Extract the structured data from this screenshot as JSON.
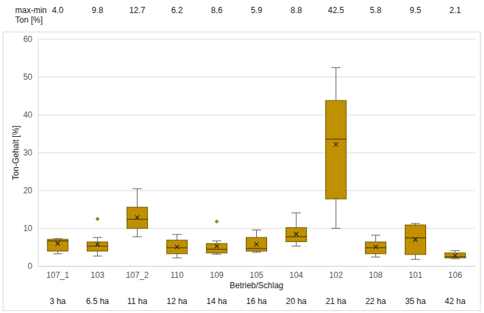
{
  "chart_data": {
    "type": "box",
    "x_label": "Betrieb/Schlag",
    "y_label": "Ton-Gehalt [%]",
    "categories": [
      "107_1",
      "103",
      "107_2",
      "110",
      "109",
      "105",
      "104",
      "102",
      "108",
      "101",
      "106"
    ],
    "min": [
      3.3,
      2.7,
      7.8,
      2.2,
      3.2,
      3.7,
      5.3,
      10.0,
      2.4,
      1.8,
      2.0
    ],
    "q1": [
      4.0,
      4.0,
      10.0,
      3.3,
      3.5,
      4.0,
      6.5,
      17.8,
      3.3,
      3.1,
      2.2
    ],
    "median": [
      6.7,
      5.3,
      12.4,
      4.9,
      4.5,
      4.7,
      7.8,
      33.6,
      4.9,
      7.5,
      2.5
    ],
    "q3": [
      7.1,
      6.4,
      15.6,
      6.9,
      6.0,
      7.6,
      10.2,
      43.8,
      6.4,
      10.9,
      3.5
    ],
    "max": [
      7.3,
      7.6,
      20.5,
      8.4,
      6.7,
      9.6,
      14.1,
      52.5,
      8.2,
      11.3,
      4.1
    ],
    "mean": [
      6.0,
      5.8,
      12.9,
      5.1,
      5.3,
      5.8,
      8.5,
      32.2,
      5.1,
      7.0,
      2.8
    ],
    "outliers": [
      [],
      [
        12.5
      ],
      [],
      [],
      [
        11.8
      ],
      [],
      [],
      [],
      [],
      [],
      []
    ],
    "color": "#bf9000",
    "ylim": [
      0,
      60
    ],
    "yticks": [
      0,
      10,
      20,
      30,
      40,
      50,
      60
    ],
    "grid": true,
    "range_row": {
      "title": [
        "max-min",
        "Ton [%]"
      ],
      "labels": [
        "4.0",
        "9.8",
        "12.7",
        "6.2",
        "8.6",
        "5.9",
        "8.8",
        "42.5",
        "5.8",
        "9.5",
        "2.1"
      ]
    },
    "areas": [
      "3 ha",
      "6.5 ha",
      "11 ha",
      "12 ha",
      "14 ha",
      "16 ha",
      "20 ha",
      "21 ha",
      "22 ha",
      "35 ha",
      "42 ha"
    ]
  }
}
